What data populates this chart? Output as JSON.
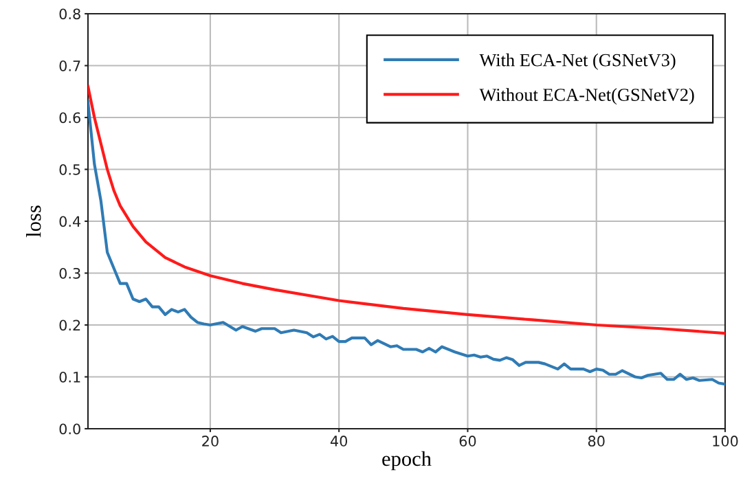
{
  "chart_data": {
    "type": "line",
    "xlabel": "epoch",
    "ylabel": "loss",
    "xlim": [
      1,
      100
    ],
    "xticks": [
      20,
      40,
      60,
      80,
      100
    ],
    "ylim": [
      0,
      0.8
    ],
    "yticks": [
      {
        "value": 0,
        "label": "0.0"
      },
      0.1,
      0.2,
      0.3,
      0.4,
      0.5,
      0.6,
      0.7,
      0.8
    ],
    "grid": true,
    "legend": "top right",
    "line_style": "solid",
    "marker": "none",
    "series": [
      {
        "name": "With ECA-Net (GSNetV3)",
        "color": "#2f7bb5",
        "x": [
          1,
          2,
          3,
          4,
          5,
          6,
          7,
          8,
          9,
          10,
          11,
          12,
          13,
          14,
          15,
          16,
          17,
          18,
          19,
          20,
          22,
          24,
          25,
          27,
          28,
          30,
          31,
          33,
          35,
          36,
          37,
          38,
          39,
          40,
          41,
          42,
          44,
          45,
          46,
          48,
          49,
          50,
          52,
          53,
          54,
          55,
          56,
          58,
          60,
          61,
          62,
          63,
          64,
          65,
          66,
          67,
          68,
          69,
          71,
          72,
          74,
          75,
          76,
          78,
          79,
          80,
          81,
          82,
          83,
          84,
          86,
          87,
          88,
          90,
          91,
          92,
          93,
          94,
          95,
          96,
          98,
          99,
          100
        ],
        "values": [
          0.63,
          0.51,
          0.44,
          0.34,
          0.31,
          0.28,
          0.28,
          0.25,
          0.245,
          0.25,
          0.235,
          0.235,
          0.22,
          0.23,
          0.225,
          0.23,
          0.215,
          0.205,
          0.202,
          0.2,
          0.205,
          0.19,
          0.197,
          0.188,
          0.193,
          0.193,
          0.185,
          0.19,
          0.185,
          0.177,
          0.182,
          0.173,
          0.178,
          0.168,
          0.168,
          0.175,
          0.175,
          0.162,
          0.17,
          0.158,
          0.16,
          0.153,
          0.153,
          0.148,
          0.155,
          0.148,
          0.158,
          0.148,
          0.14,
          0.142,
          0.138,
          0.14,
          0.134,
          0.132,
          0.137,
          0.133,
          0.122,
          0.128,
          0.128,
          0.125,
          0.115,
          0.125,
          0.115,
          0.115,
          0.11,
          0.115,
          0.113,
          0.105,
          0.105,
          0.112,
          0.1,
          0.098,
          0.103,
          0.107,
          0.095,
          0.095,
          0.105,
          0.095,
          0.098,
          0.093,
          0.095,
          0.088,
          0.086
        ]
      },
      {
        "name": "Without ECA-Net(GSNetV2)",
        "color": "#ff1a1a",
        "x": [
          1,
          2,
          3,
          4,
          5,
          6,
          8,
          10,
          13,
          16,
          20,
          25,
          30,
          40,
          50,
          60,
          70,
          80,
          90,
          100
        ],
        "values": [
          0.66,
          0.6,
          0.55,
          0.5,
          0.46,
          0.43,
          0.39,
          0.36,
          0.33,
          0.312,
          0.295,
          0.28,
          0.268,
          0.247,
          0.232,
          0.22,
          0.21,
          0.2,
          0.193,
          0.184
        ]
      }
    ]
  }
}
